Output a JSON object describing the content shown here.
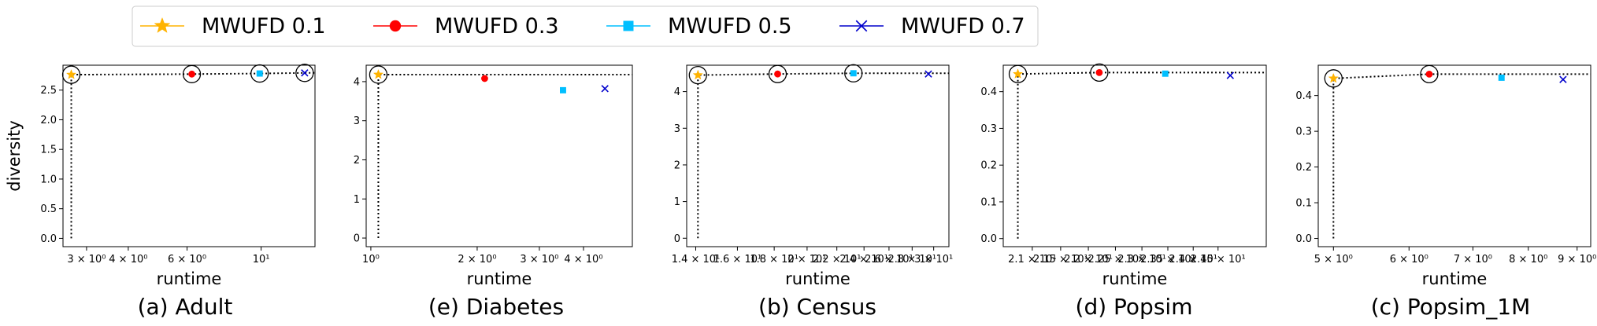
{
  "legend": {
    "placement": "top",
    "entries": [
      {
        "label": "MWUFD 0.1",
        "color": "#FFB300",
        "marker": "star"
      },
      {
        "label": "MWUFD 0.3",
        "color": "#FF0000",
        "marker": "circle"
      },
      {
        "label": "MWUFD 0.5",
        "color": "#00BFFF",
        "marker": "square"
      },
      {
        "label": "MWUFD 0.7",
        "color": "#0000CC",
        "marker": "x"
      }
    ]
  },
  "chart_data": [
    {
      "type": "scatter",
      "caption": "(a) Adult",
      "xlabel": "runtime",
      "ylabel": "diversity",
      "xscale": "log",
      "xlim": [
        2.55,
        14.5
      ],
      "ylim": [
        -0.14,
        2.92
      ],
      "xticks": [
        {
          "v": 3,
          "label": "3 × 10⁰"
        },
        {
          "v": 4,
          "label": "4 × 10⁰"
        },
        {
          "v": 6,
          "label": "6 × 10⁰"
        },
        {
          "v": 10,
          "label": "10¹"
        }
      ],
      "yticks": [
        {
          "v": 0,
          "label": "0.0"
        },
        {
          "v": 0.5,
          "label": "0.5"
        },
        {
          "v": 1,
          "label": "1.0"
        },
        {
          "v": 1.5,
          "label": "1.5"
        },
        {
          "v": 2,
          "label": "2.0"
        },
        {
          "v": 2.5,
          "label": "2.5"
        }
      ],
      "series": [
        {
          "name": "MWUFD 0.1",
          "x": 2.7,
          "y": 2.76,
          "pareto": true
        },
        {
          "name": "MWUFD 0.3",
          "x": 6.2,
          "y": 2.77,
          "pareto": true
        },
        {
          "name": "MWUFD 0.5",
          "x": 9.9,
          "y": 2.78,
          "pareto": true
        },
        {
          "name": "MWUFD 0.7",
          "x": 13.5,
          "y": 2.79,
          "pareto": true
        }
      ],
      "frontier": [
        [
          2.7,
          0
        ],
        [
          2.7,
          2.76
        ],
        [
          6.2,
          2.77
        ],
        [
          9.9,
          2.78
        ],
        [
          13.5,
          2.79
        ],
        [
          14.5,
          2.79
        ]
      ]
    },
    {
      "type": "scatter",
      "caption": "(e) Diabetes",
      "xlabel": "runtime",
      "ylabel": "",
      "xscale": "log",
      "xlim": [
        0.97,
        5.5
      ],
      "ylim": [
        -0.22,
        4.42
      ],
      "xticks": [
        {
          "v": 1,
          "label": "10⁰"
        },
        {
          "v": 2,
          "label": "2 × 10⁰"
        },
        {
          "v": 3,
          "label": "3 × 10⁰"
        },
        {
          "v": 4,
          "label": "4 × 10⁰"
        }
      ],
      "yticks": [
        {
          "v": 0,
          "label": "0"
        },
        {
          "v": 1,
          "label": "1"
        },
        {
          "v": 2,
          "label": "2"
        },
        {
          "v": 3,
          "label": "3"
        },
        {
          "v": 4,
          "label": "4"
        }
      ],
      "series": [
        {
          "name": "MWUFD 0.1",
          "x": 1.05,
          "y": 4.18,
          "pareto": true
        },
        {
          "name": "MWUFD 0.3",
          "x": 2.1,
          "y": 4.08,
          "pareto": false
        },
        {
          "name": "MWUFD 0.5",
          "x": 3.5,
          "y": 3.78,
          "pareto": false
        },
        {
          "name": "MWUFD 0.7",
          "x": 4.6,
          "y": 3.82,
          "pareto": false
        }
      ],
      "frontier": [
        [
          1.05,
          0
        ],
        [
          1.05,
          4.18
        ],
        [
          5.5,
          4.18
        ]
      ]
    },
    {
      "type": "scatter",
      "caption": "(b) Census",
      "xlabel": "runtime",
      "ylabel": "",
      "xscale": "log",
      "xlim": [
        13.6,
        31.5
      ],
      "ylim": [
        -0.23,
        4.72
      ],
      "xticks": [
        {
          "v": 14,
          "label": "1.4 × 10¹"
        },
        {
          "v": 16,
          "label": "1.6 × 10¹"
        },
        {
          "v": 18,
          "label": "1.8 × 10¹"
        },
        {
          "v": 20,
          "label": "2 × 10¹"
        },
        {
          "v": 22,
          "label": "2.2 × 10¹"
        },
        {
          "v": 24,
          "label": "2.4 × 10¹"
        },
        {
          "v": 26,
          "label": "2.6 × 10¹"
        },
        {
          "v": 28,
          "label": "2.8 × 10¹"
        },
        {
          "v": 30,
          "label": "3 × 10¹"
        }
      ],
      "yticks": [
        {
          "v": 0,
          "label": "0"
        },
        {
          "v": 1,
          "label": "1"
        },
        {
          "v": 2,
          "label": "2"
        },
        {
          "v": 3,
          "label": "3"
        },
        {
          "v": 4,
          "label": "4"
        }
      ],
      "series": [
        {
          "name": "MWUFD 0.1",
          "x": 14.1,
          "y": 4.45,
          "pareto": true
        },
        {
          "name": "MWUFD 0.3",
          "x": 18.2,
          "y": 4.48,
          "pareto": true
        },
        {
          "name": "MWUFD 0.5",
          "x": 23.2,
          "y": 4.5,
          "pareto": true
        },
        {
          "name": "MWUFD 0.7",
          "x": 29.5,
          "y": 4.48,
          "pareto": false
        }
      ],
      "frontier": [
        [
          14.1,
          0
        ],
        [
          14.1,
          4.45
        ],
        [
          18.2,
          4.48
        ],
        [
          23.2,
          4.5
        ],
        [
          31.5,
          4.5
        ]
      ]
    },
    {
      "type": "scatter",
      "caption": "(d) Popsim",
      "xlabel": "runtime",
      "ylabel": "",
      "xscale": "log",
      "xlim": [
        20.5,
        25.5
      ],
      "ylim": [
        -0.022,
        0.472
      ],
      "xticks": [
        {
          "v": 21,
          "label": "2.1 × 10¹"
        },
        {
          "v": 21.5,
          "label": "2.15 × 10¹"
        },
        {
          "v": 22,
          "label": "2.2 × 10¹"
        },
        {
          "v": 22.5,
          "label": "2.25 × 10¹"
        },
        {
          "v": 23,
          "label": "2.3 × 10¹"
        },
        {
          "v": 23.5,
          "label": "2.35 × 10¹"
        },
        {
          "v": 24,
          "label": "2.4 × 10¹"
        },
        {
          "v": 24.5,
          "label": "2.45 × 10¹"
        }
      ],
      "yticks": [
        {
          "v": 0,
          "label": "0.0"
        },
        {
          "v": 0.1,
          "label": "0.1"
        },
        {
          "v": 0.2,
          "label": "0.2"
        },
        {
          "v": 0.3,
          "label": "0.3"
        },
        {
          "v": 0.4,
          "label": "0.4"
        }
      ],
      "series": [
        {
          "name": "MWUFD 0.1",
          "x": 20.75,
          "y": 0.448,
          "pareto": true
        },
        {
          "name": "MWUFD 0.3",
          "x": 22.2,
          "y": 0.452,
          "pareto": true
        },
        {
          "name": "MWUFD 0.5",
          "x": 23.45,
          "y": 0.449,
          "pareto": false
        },
        {
          "name": "MWUFD 0.7",
          "x": 24.75,
          "y": 0.444,
          "pareto": false
        }
      ],
      "frontier": [
        [
          20.75,
          0
        ],
        [
          20.75,
          0.448
        ],
        [
          22.2,
          0.452
        ],
        [
          25.5,
          0.452
        ]
      ]
    },
    {
      "type": "scatter",
      "caption": "(c) Popsim_1M",
      "xlabel": "runtime",
      "ylabel": "",
      "xscale": "log",
      "xlim": [
        4.82,
        9.3
      ],
      "ylim": [
        -0.023,
        0.485
      ],
      "xticks": [
        {
          "v": 5,
          "label": "5 × 10⁰"
        },
        {
          "v": 6,
          "label": "6 × 10⁰"
        },
        {
          "v": 7,
          "label": "7 × 10⁰"
        },
        {
          "v": 8,
          "label": "8 × 10⁰"
        },
        {
          "v": 9,
          "label": "9 × 10⁰"
        }
      ],
      "yticks": [
        {
          "v": 0,
          "label": "0.0"
        },
        {
          "v": 0.1,
          "label": "0.1"
        },
        {
          "v": 0.2,
          "label": "0.2"
        },
        {
          "v": 0.3,
          "label": "0.3"
        },
        {
          "v": 0.4,
          "label": "0.4"
        }
      ],
      "series": [
        {
          "name": "MWUFD 0.1",
          "x": 5.0,
          "y": 0.448,
          "pareto": true
        },
        {
          "name": "MWUFD 0.3",
          "x": 6.3,
          "y": 0.46,
          "pareto": true
        },
        {
          "name": "MWUFD 0.5",
          "x": 7.5,
          "y": 0.45,
          "pareto": false
        },
        {
          "name": "MWUFD 0.7",
          "x": 8.7,
          "y": 0.445,
          "pareto": false
        }
      ],
      "frontier": [
        [
          5.0,
          0
        ],
        [
          5.0,
          0.448
        ],
        [
          6.3,
          0.46
        ],
        [
          9.3,
          0.46
        ]
      ]
    }
  ]
}
